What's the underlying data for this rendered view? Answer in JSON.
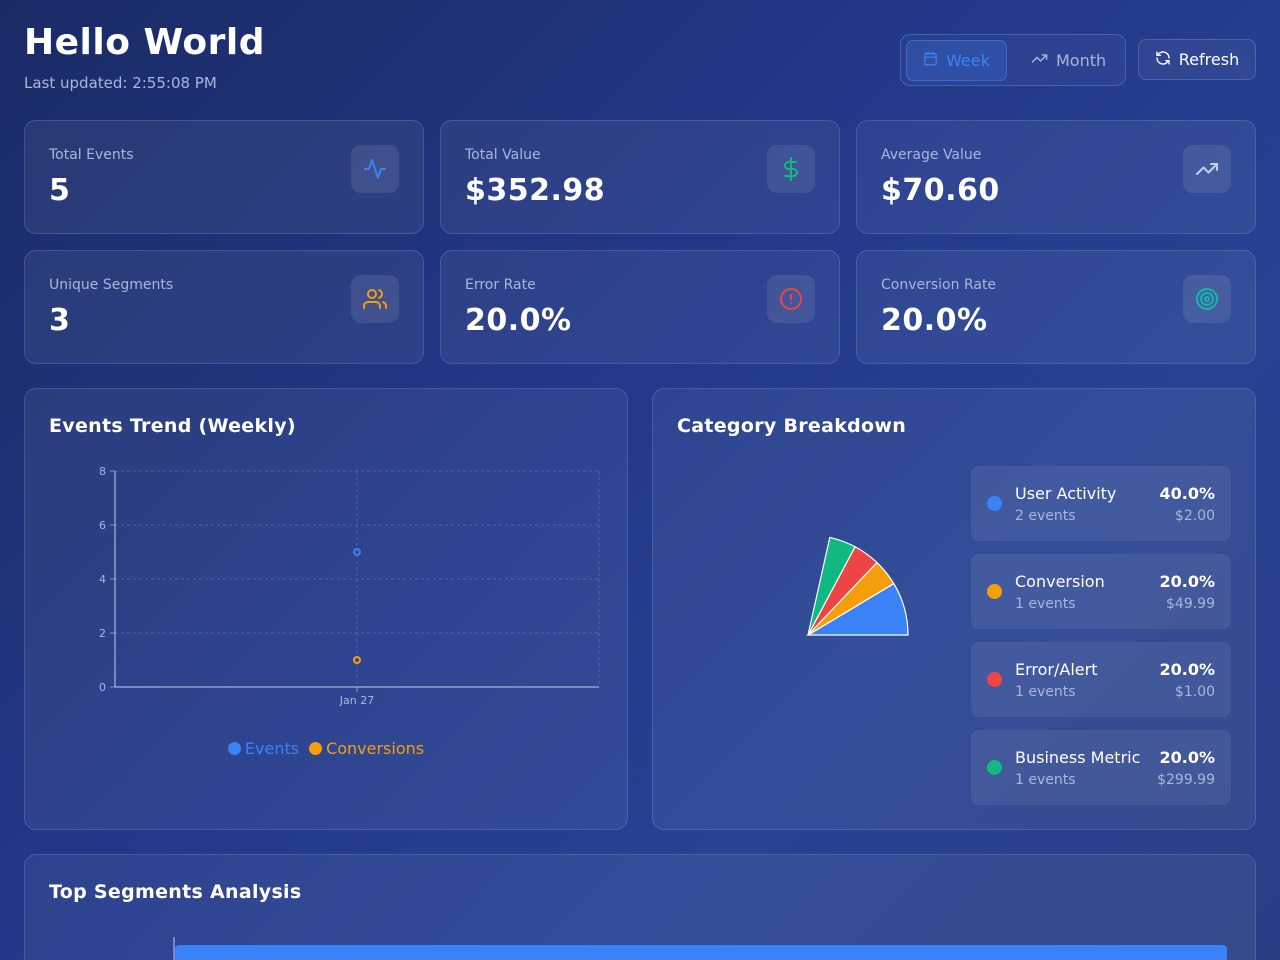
{
  "header": {
    "title": "Hello World",
    "last_updated": "Last updated: 2:55:08 PM"
  },
  "controls": {
    "week_label": "Week",
    "month_label": "Month",
    "refresh_label": "Refresh",
    "active_period": "Week"
  },
  "stats": [
    {
      "label": "Total Events",
      "value": "5",
      "icon": "activity-icon",
      "color": "#3b82f6"
    },
    {
      "label": "Total Value",
      "value": "$352.98",
      "icon": "dollar-icon",
      "color": "#10b981"
    },
    {
      "label": "Average Value",
      "value": "$70.60",
      "icon": "trending-up-icon",
      "color": "#a9b6da"
    },
    {
      "label": "Unique Segments",
      "value": "3",
      "icon": "users-icon",
      "color": "#f59e0b"
    },
    {
      "label": "Error Rate",
      "value": "20.0%",
      "icon": "alert-circle-icon",
      "color": "#ef4444"
    },
    {
      "label": "Conversion Rate",
      "value": "20.0%",
      "icon": "target-icon",
      "color": "#14b8a6"
    }
  ],
  "trend": {
    "title": "Events Trend (Weekly)"
  },
  "chart_data": {
    "type": "scatter",
    "x": [
      "Jan 27"
    ],
    "ylim": [
      0,
      8
    ],
    "yticks": [
      0,
      2,
      4,
      6,
      8
    ],
    "grid": true,
    "legend_position": "bottom",
    "series": [
      {
        "name": "Events",
        "values": [
          5
        ],
        "color": "#3b82f6"
      },
      {
        "name": "Conversions",
        "values": [
          1
        ],
        "color": "#f59e0b"
      }
    ]
  },
  "categories": {
    "title": "Category Breakdown",
    "items": [
      {
        "name": "User Activity",
        "count": "2 events",
        "percent": "40.0%",
        "share": 40,
        "value": "$2.00",
        "color": "#3b82f6"
      },
      {
        "name": "Conversion",
        "count": "1 events",
        "percent": "20.0%",
        "share": 20,
        "value": "$49.99",
        "color": "#f59e0b"
      },
      {
        "name": "Error/Alert",
        "count": "1 events",
        "percent": "20.0%",
        "share": 20,
        "value": "$1.00",
        "color": "#ef4444"
      },
      {
        "name": "Business Metric",
        "count": "1 events",
        "percent": "20.0%",
        "share": 20,
        "value": "$299.99",
        "color": "#10b981"
      }
    ]
  },
  "segments": {
    "title": "Top Segments Analysis"
  }
}
